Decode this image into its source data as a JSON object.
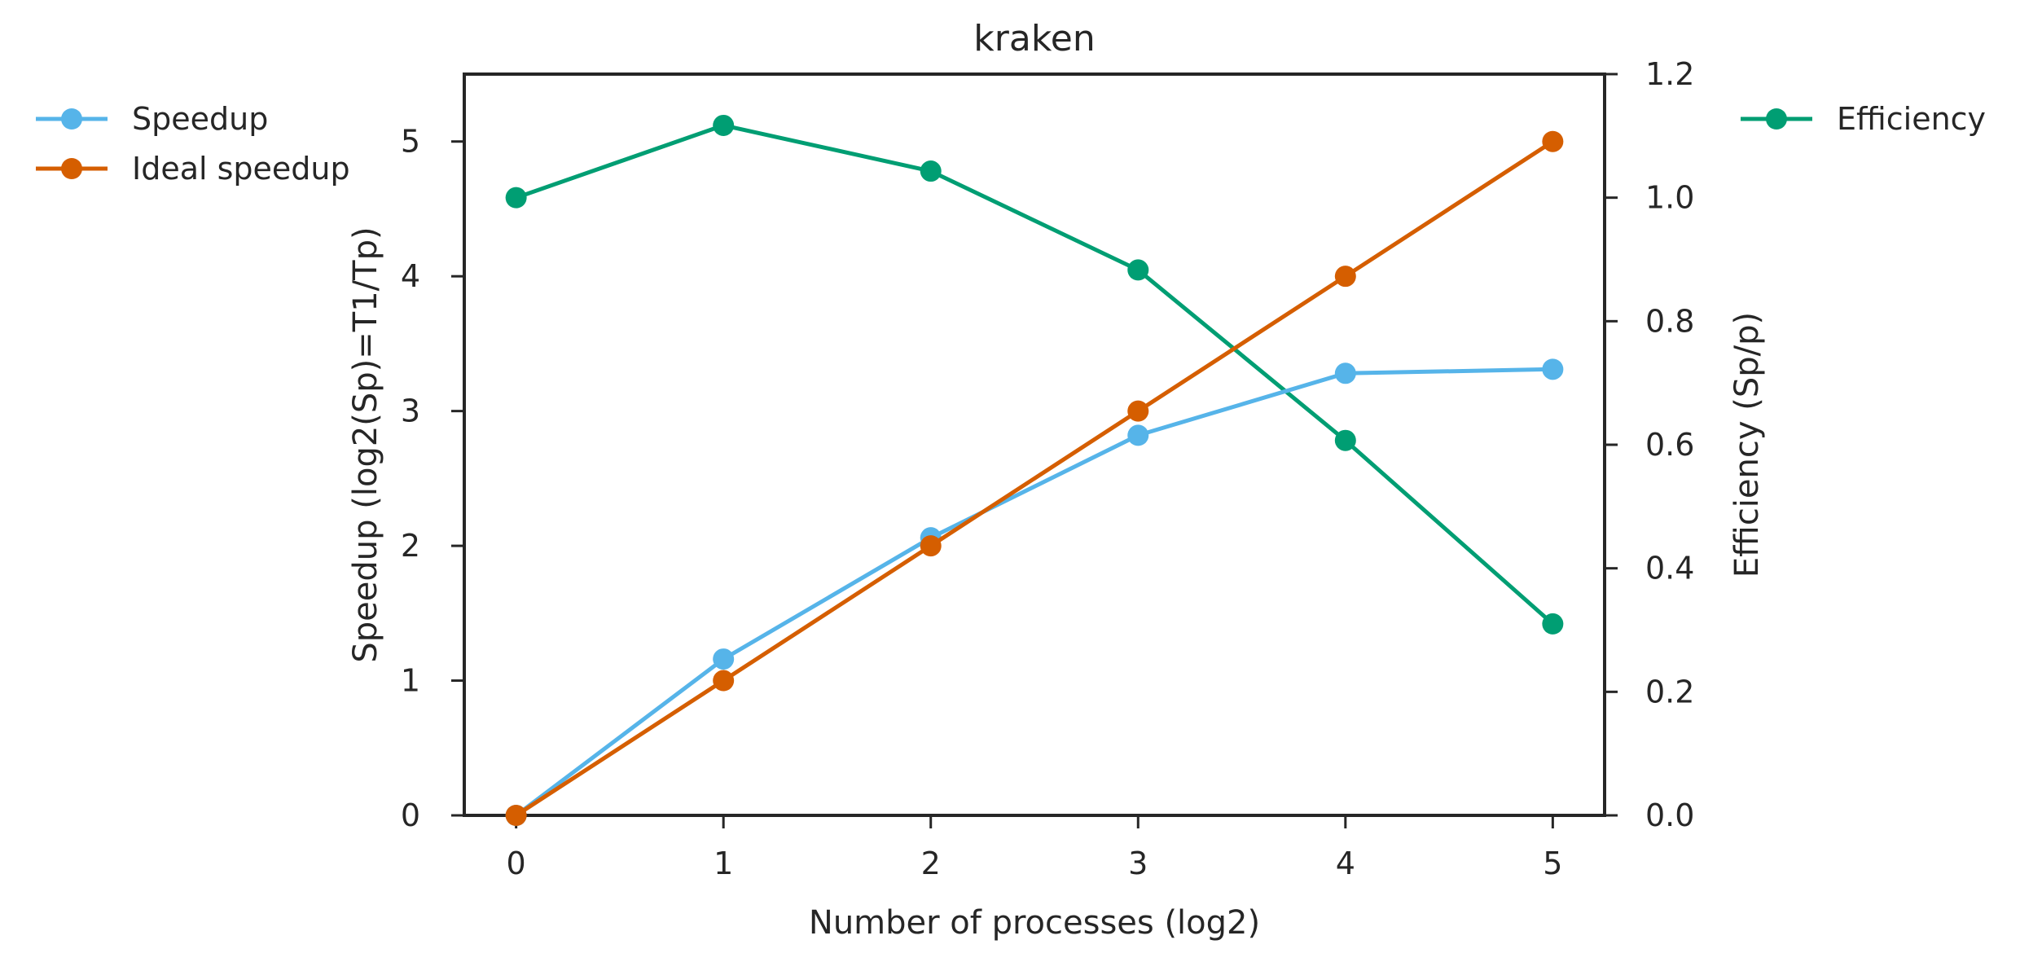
{
  "chart_data": {
    "type": "line",
    "title": "kraken",
    "xlabel": "Number of processes (log2)",
    "ylabel": "Speedup (log2(Sp)=T1/Tp)",
    "y2label": "Efficiency (Sp/p)",
    "x": [
      0,
      1,
      2,
      3,
      4,
      5
    ],
    "xlim": [
      -0.25,
      5.25
    ],
    "ylim": [
      0,
      5.5
    ],
    "y2lim": [
      0,
      1.2
    ],
    "xticks": [
      "0",
      "1",
      "2",
      "3",
      "4",
      "5"
    ],
    "yticks": [
      "0",
      "1",
      "2",
      "3",
      "4",
      "5"
    ],
    "y2ticks": [
      "0.0",
      "0.2",
      "0.4",
      "0.6",
      "0.8",
      "1.0",
      "1.2"
    ],
    "grid": false,
    "series": [
      {
        "name": "Speedup",
        "axis": "left",
        "color": "#56b4e9",
        "values": [
          0.0,
          1.16,
          2.06,
          2.82,
          3.28,
          3.31
        ]
      },
      {
        "name": "Ideal speedup",
        "axis": "left",
        "color": "#d55e00",
        "values": [
          0,
          1,
          2,
          3,
          4,
          5
        ]
      },
      {
        "name": "Efficiency",
        "axis": "right",
        "color": "#009e73",
        "values": [
          1.0,
          1.117,
          1.043,
          0.883,
          0.607,
          0.31
        ]
      }
    ],
    "legend_left": {
      "placement": "outside-left",
      "entries": [
        "Speedup",
        "Ideal speedup"
      ]
    },
    "legend_right": {
      "placement": "outside-right",
      "entries": [
        "Efficiency"
      ]
    }
  }
}
